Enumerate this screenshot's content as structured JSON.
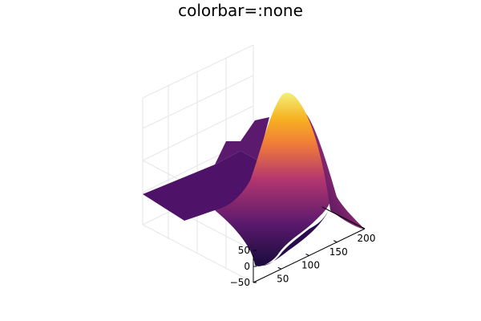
{
  "chart_data": {
    "type": "surface",
    "title": "colorbar=:none",
    "colorbar": "none",
    "colormap": "inferno",
    "grid": true,
    "x_axis": {
      "ticks": [
        50,
        100,
        150,
        200
      ],
      "range": [
        0,
        200
      ]
    },
    "y_axis": {
      "ticks": [
        -50,
        0,
        50
      ],
      "range": [
        -50,
        50
      ]
    },
    "z_axis": {
      "ticks": [],
      "range": [
        0,
        1
      ]
    },
    "colors": {
      "low": "#180b3a",
      "mid": "#b3366f",
      "high": "#f2f07a",
      "grid": "#e6e6e6",
      "axis": "#000000"
    }
  }
}
